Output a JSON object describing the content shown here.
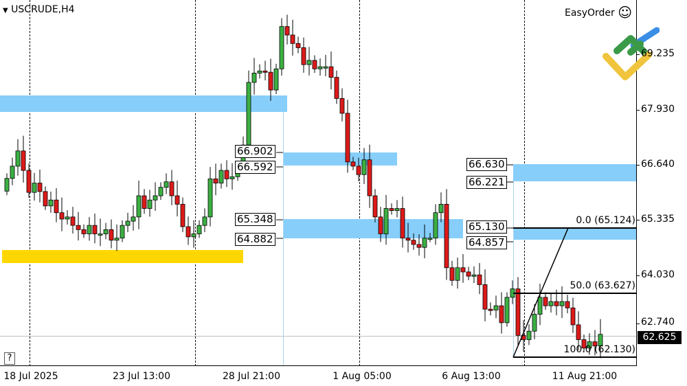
{
  "header": {
    "symbol_timeframe": "USCRUDE,H4",
    "menu_arrow": "▼",
    "easyorder_label": "EasyOrder",
    "smiley": "☺"
  },
  "help_button": "?",
  "current_price": "62.625",
  "colors": {
    "bull": "#3cb043",
    "bear": "#dd1a1a",
    "zone": "#87cefa",
    "support_zone": "#ffd700",
    "price_box": "#000000"
  },
  "y_axis": {
    "labels": [
      "69.235",
      "67.930",
      "66.640",
      "65.335",
      "64.030",
      "62.740"
    ]
  },
  "x_axis": {
    "labels": [
      "18 Jul 2025",
      "23 Jul 13:00",
      "28 Jul 21:00",
      "1 Aug 05:00",
      "6 Aug 13:00",
      "11 Aug 21:00"
    ]
  },
  "levels": {
    "a_top": "66.902",
    "a_bottom": "66.592",
    "b_top": "65.348",
    "b_bottom": "64.882",
    "c_top": "66.630",
    "c_bottom": "66.221",
    "d_top": "65.130",
    "d_bottom": "64.857"
  },
  "fibonacci": {
    "level_0": "0.0 (65.124)",
    "level_50": "50.0 (63.627)",
    "level_100": "100.0 (62.130)"
  },
  "chart_data": {
    "type": "candlestick",
    "symbol": "USCRUDE",
    "timeframe": "H4",
    "ylim": [
      61.85,
      70.5
    ],
    "closes": [
      66.31,
      66.6,
      66.96,
      66.5,
      65.98,
      66.2,
      66.0,
      65.66,
      65.8,
      65.5,
      65.35,
      65.4,
      65.2,
      65.1,
      65.0,
      65.2,
      65.0,
      65.0,
      65.1,
      64.85,
      64.9,
      65.2,
      65.3,
      65.4,
      65.9,
      65.6,
      65.8,
      65.9,
      66.1,
      66.23,
      65.9,
      65.7,
      65.17,
      64.93,
      65.0,
      65.2,
      65.4,
      66.3,
      66.2,
      66.5,
      66.3,
      66.35,
      66.6,
      67.1,
      68.58,
      68.8,
      68.85,
      68.82,
      68.4,
      68.9,
      69.9,
      69.7,
      69.5,
      69.4,
      69.0,
      69.1,
      68.9,
      68.95,
      68.95,
      68.7,
      68.2,
      67.85,
      66.7,
      66.6,
      66.4,
      66.75,
      65.9,
      65.4,
      65.0,
      65.6,
      65.55,
      65.6,
      64.9,
      64.85,
      64.75,
      64.68,
      64.9,
      64.9,
      65.5,
      65.7,
      64.2,
      63.9,
      64.2,
      64.1,
      64.0,
      64.03,
      63.8,
      63.22,
      63.2,
      63.3,
      62.9,
      63.5,
      63.7,
      62.6,
      62.5,
      62.7,
      63.1,
      63.5,
      63.3,
      63.4,
      63.3,
      63.4,
      63.25,
      62.85,
      62.5,
      62.3,
      62.45,
      62.35,
      62.625
    ]
  }
}
